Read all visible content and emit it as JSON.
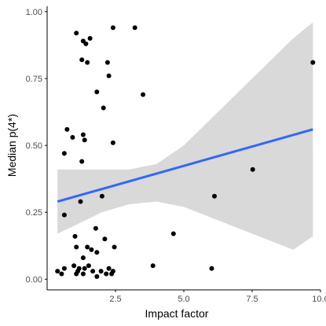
{
  "chart_data": {
    "type": "scatter",
    "title": "",
    "xlabel": "Impact factor",
    "ylabel": "Median p(4*)",
    "xlim": [
      0.0,
      10.0
    ],
    "ylim": [
      -0.04,
      1.02
    ],
    "xticks": [
      2.5,
      5.0,
      7.5,
      10.0
    ],
    "xtick_labels": [
      "2.5",
      "5.0",
      "7.5",
      "10.0"
    ],
    "yticks": [
      0.0,
      0.25,
      0.5,
      0.75,
      1.0
    ],
    "ytick_labels": [
      "0.00",
      "0.25",
      "0.50",
      "0.75",
      "1.00"
    ],
    "grid": false,
    "legend": "none",
    "points": [
      {
        "x": 1.07,
        "y": 0.92
      },
      {
        "x": 2.41,
        "y": 0.94
      },
      {
        "x": 3.21,
        "y": 0.94
      },
      {
        "x": 1.32,
        "y": 0.89
      },
      {
        "x": 1.42,
        "y": 0.88
      },
      {
        "x": 1.57,
        "y": 0.9
      },
      {
        "x": 1.27,
        "y": 0.82
      },
      {
        "x": 1.47,
        "y": 0.81
      },
      {
        "x": 2.21,
        "y": 0.81
      },
      {
        "x": 9.72,
        "y": 0.81
      },
      {
        "x": 2.26,
        "y": 0.76
      },
      {
        "x": 1.82,
        "y": 0.7
      },
      {
        "x": 3.51,
        "y": 0.69
      },
      {
        "x": 2.06,
        "y": 0.64
      },
      {
        "x": 0.73,
        "y": 0.56
      },
      {
        "x": 0.93,
        "y": 0.53
      },
      {
        "x": 1.32,
        "y": 0.54
      },
      {
        "x": 1.37,
        "y": 0.52
      },
      {
        "x": 2.41,
        "y": 0.51
      },
      {
        "x": 0.63,
        "y": 0.47
      },
      {
        "x": 1.27,
        "y": 0.44
      },
      {
        "x": 7.52,
        "y": 0.41
      },
      {
        "x": 6.12,
        "y": 0.31
      },
      {
        "x": 2.01,
        "y": 0.31
      },
      {
        "x": 1.22,
        "y": 0.29
      },
      {
        "x": 0.63,
        "y": 0.24
      },
      {
        "x": 1.78,
        "y": 0.19
      },
      {
        "x": 4.62,
        "y": 0.17
      },
      {
        "x": 1.02,
        "y": 0.16
      },
      {
        "x": 2.11,
        "y": 0.15
      },
      {
        "x": 1.47,
        "y": 0.12
      },
      {
        "x": 2.46,
        "y": 0.12
      },
      {
        "x": 1.07,
        "y": 0.12
      },
      {
        "x": 1.62,
        "y": 0.11
      },
      {
        "x": 1.82,
        "y": 0.1
      },
      {
        "x": 1.32,
        "y": 0.08
      },
      {
        "x": 0.98,
        "y": 0.05
      },
      {
        "x": 3.87,
        "y": 0.05
      },
      {
        "x": 1.17,
        "y": 0.04
      },
      {
        "x": 1.37,
        "y": 0.04
      },
      {
        "x": 1.52,
        "y": 0.05
      },
      {
        "x": 0.63,
        "y": 0.04
      },
      {
        "x": 6.02,
        "y": 0.04
      },
      {
        "x": 1.12,
        "y": 0.03
      },
      {
        "x": 2.26,
        "y": 0.04
      },
      {
        "x": 2.41,
        "y": 0.03
      },
      {
        "x": 0.38,
        "y": 0.03
      },
      {
        "x": 1.67,
        "y": 0.03
      },
      {
        "x": 1.97,
        "y": 0.03
      },
      {
        "x": 2.16,
        "y": 0.02
      },
      {
        "x": 0.53,
        "y": 0.02
      },
      {
        "x": 1.07,
        "y": 0.02
      },
      {
        "x": 1.32,
        "y": 0.02
      },
      {
        "x": 2.36,
        "y": 0.02
      },
      {
        "x": 1.82,
        "y": 0.01
      }
    ],
    "trend_line": {
      "x": [
        0.38,
        9.72
      ],
      "y": [
        0.29,
        0.56
      ]
    },
    "confidence_band": {
      "x": [
        0.38,
        1.0,
        2.0,
        3.0,
        4.0,
        5.0,
        6.0,
        7.0,
        8.0,
        9.0,
        9.72
      ],
      "upper": [
        0.41,
        0.41,
        0.41,
        0.41,
        0.43,
        0.5,
        0.6,
        0.7,
        0.8,
        0.9,
        0.96
      ],
      "lower": [
        0.17,
        0.2,
        0.25,
        0.28,
        0.29,
        0.27,
        0.23,
        0.19,
        0.15,
        0.11,
        0.16
      ]
    },
    "colors": {
      "points": "#000000",
      "trend_line": "#3366ff",
      "confidence_band": "#d9d9d9",
      "axis": "#000000",
      "tick_label": "#4d4d4d"
    }
  }
}
